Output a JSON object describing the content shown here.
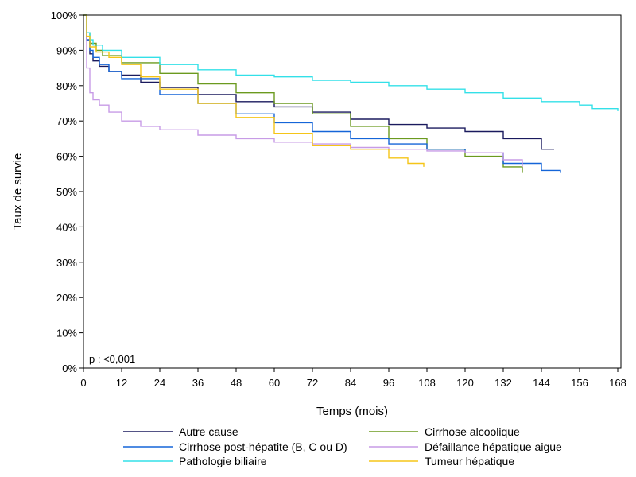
{
  "chart_data": {
    "type": "line",
    "xlabel": "Temps (mois)",
    "ylabel": "Taux de survie",
    "xlim": [
      0,
      169
    ],
    "ylim": [
      0,
      100
    ],
    "x_ticks": [
      0,
      12,
      24,
      36,
      48,
      60,
      72,
      84,
      96,
      108,
      120,
      132,
      144,
      156,
      168
    ],
    "y_ticks": [
      0,
      10,
      20,
      30,
      40,
      50,
      60,
      70,
      80,
      90,
      100
    ],
    "y_tick_labels": [
      "0%",
      "10%",
      "20%",
      "30%",
      "40%",
      "50%",
      "60%",
      "70%",
      "80%",
      "90%",
      "100%"
    ],
    "grid": false,
    "legend_placement": "bottom",
    "annotation": "p : <0,001",
    "series": [
      {
        "name": "Autre cause",
        "color": "#1a1a5e",
        "points": [
          [
            0,
            100
          ],
          [
            1,
            93
          ],
          [
            2,
            89
          ],
          [
            3,
            87
          ],
          [
            5,
            85.5
          ],
          [
            8,
            84
          ],
          [
            12,
            83
          ],
          [
            18,
            81
          ],
          [
            24,
            79.5
          ],
          [
            36,
            77.5
          ],
          [
            48,
            75.5
          ],
          [
            60,
            74
          ],
          [
            72,
            72.5
          ],
          [
            84,
            70.5
          ],
          [
            96,
            69
          ],
          [
            108,
            68
          ],
          [
            120,
            67
          ],
          [
            132,
            65
          ],
          [
            144,
            62
          ],
          [
            148,
            62
          ]
        ]
      },
      {
        "name": "Cirrhose alcoolique",
        "color": "#6b9a1f",
        "points": [
          [
            0,
            100
          ],
          [
            1,
            95
          ],
          [
            2,
            92
          ],
          [
            4,
            90
          ],
          [
            6,
            88.5
          ],
          [
            12,
            86.5
          ],
          [
            24,
            83.5
          ],
          [
            36,
            80.5
          ],
          [
            48,
            78
          ],
          [
            60,
            75
          ],
          [
            72,
            72
          ],
          [
            84,
            68.5
          ],
          [
            96,
            65
          ],
          [
            108,
            62
          ],
          [
            120,
            60
          ],
          [
            132,
            57
          ],
          [
            138,
            55.5
          ]
        ]
      },
      {
        "name": "Cirrhose post-hépatite (B, C ou D)",
        "color": "#1565d8",
        "points": [
          [
            0,
            100
          ],
          [
            1,
            93
          ],
          [
            2,
            90
          ],
          [
            3,
            88
          ],
          [
            5,
            86
          ],
          [
            8,
            84
          ],
          [
            12,
            82
          ],
          [
            24,
            77.5
          ],
          [
            36,
            75
          ],
          [
            48,
            72
          ],
          [
            60,
            69.5
          ],
          [
            72,
            67
          ],
          [
            84,
            65
          ],
          [
            96,
            63.5
          ],
          [
            108,
            62
          ],
          [
            120,
            61
          ],
          [
            132,
            58
          ],
          [
            144,
            56
          ],
          [
            150,
            55.5
          ]
        ]
      },
      {
        "name": "Défaillance hépatique aigue",
        "color": "#c79be6",
        "points": [
          [
            0,
            100
          ],
          [
            1,
            85
          ],
          [
            2,
            78
          ],
          [
            3,
            76
          ],
          [
            5,
            74.5
          ],
          [
            8,
            72.5
          ],
          [
            12,
            70
          ],
          [
            18,
            68.5
          ],
          [
            24,
            67.5
          ],
          [
            36,
            66
          ],
          [
            48,
            65
          ],
          [
            60,
            64
          ],
          [
            72,
            63.5
          ],
          [
            84,
            62.5
          ],
          [
            96,
            62
          ],
          [
            108,
            61.5
          ],
          [
            120,
            61
          ],
          [
            132,
            59
          ],
          [
            138,
            57
          ]
        ]
      },
      {
        "name": "Pathologie biliaire",
        "color": "#33e0e8",
        "points": [
          [
            0,
            100
          ],
          [
            1,
            95
          ],
          [
            2,
            93
          ],
          [
            3,
            91.5
          ],
          [
            6,
            90
          ],
          [
            12,
            88
          ],
          [
            24,
            86
          ],
          [
            36,
            84.5
          ],
          [
            48,
            83
          ],
          [
            60,
            82.5
          ],
          [
            72,
            81.5
          ],
          [
            84,
            81
          ],
          [
            96,
            80
          ],
          [
            108,
            79
          ],
          [
            120,
            78
          ],
          [
            132,
            76.5
          ],
          [
            144,
            75.5
          ],
          [
            156,
            74.5
          ],
          [
            160,
            73.5
          ],
          [
            168,
            73
          ]
        ]
      },
      {
        "name": "Tumeur hépatique",
        "color": "#f5c518",
        "points": [
          [
            0,
            100
          ],
          [
            1,
            94
          ],
          [
            2,
            91
          ],
          [
            4,
            89.5
          ],
          [
            8,
            88
          ],
          [
            12,
            86
          ],
          [
            18,
            82.5
          ],
          [
            24,
            79
          ],
          [
            36,
            75
          ],
          [
            48,
            71
          ],
          [
            60,
            66.5
          ],
          [
            72,
            63
          ],
          [
            84,
            62
          ],
          [
            96,
            59.5
          ],
          [
            102,
            58
          ],
          [
            107,
            57
          ]
        ]
      }
    ]
  }
}
